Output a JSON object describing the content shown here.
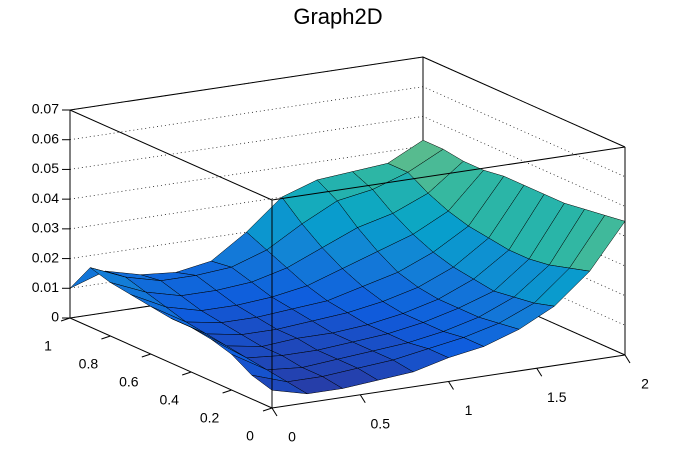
{
  "chart_data": {
    "type": "surface",
    "title": "Graph2D",
    "x": [
      0,
      0.2,
      0.4,
      0.6,
      0.8,
      1.0,
      1.2,
      1.4,
      1.6,
      1.8,
      2.0
    ],
    "y": [
      0,
      0.1,
      0.2,
      0.3,
      0.4,
      0.5,
      0.6,
      0.7,
      0.8,
      0.9,
      1.0
    ],
    "z": [
      [
        0.006,
        0.003,
        0.003,
        0.004,
        0.005,
        0.008,
        0.01,
        0.014,
        0.02,
        0.03,
        0.045
      ],
      [
        0.008,
        0.004,
        0.004,
        0.005,
        0.006,
        0.008,
        0.01,
        0.013,
        0.018,
        0.028,
        0.044
      ],
      [
        0.012,
        0.005,
        0.004,
        0.005,
        0.006,
        0.007,
        0.009,
        0.012,
        0.017,
        0.026,
        0.043
      ],
      [
        0.014,
        0.006,
        0.005,
        0.005,
        0.006,
        0.007,
        0.009,
        0.012,
        0.016,
        0.025,
        0.042
      ],
      [
        0.015,
        0.007,
        0.005,
        0.006,
        0.006,
        0.007,
        0.009,
        0.012,
        0.017,
        0.025,
        0.042
      ],
      [
        0.015,
        0.008,
        0.006,
        0.006,
        0.007,
        0.008,
        0.01,
        0.013,
        0.018,
        0.026,
        0.042
      ],
      [
        0.016,
        0.009,
        0.007,
        0.007,
        0.008,
        0.009,
        0.012,
        0.015,
        0.02,
        0.027,
        0.042
      ],
      [
        0.017,
        0.011,
        0.008,
        0.008,
        0.009,
        0.011,
        0.015,
        0.019,
        0.023,
        0.029,
        0.041
      ],
      [
        0.018,
        0.013,
        0.01,
        0.01,
        0.011,
        0.014,
        0.019,
        0.024,
        0.027,
        0.032,
        0.041
      ],
      [
        0.02,
        0.015,
        0.012,
        0.012,
        0.013,
        0.017,
        0.024,
        0.03,
        0.032,
        0.036,
        0.042
      ],
      [
        0.01,
        0.014,
        0.011,
        0.01,
        0.012,
        0.02,
        0.03,
        0.034,
        0.035,
        0.036,
        0.042
      ]
    ],
    "xlim": [
      0,
      2
    ],
    "ylim": [
      0,
      1
    ],
    "zlim": [
      0,
      0.07
    ],
    "xticks": [
      0,
      0.5,
      1,
      1.5,
      2
    ],
    "yticks": [
      0,
      0.2,
      0.4,
      0.6,
      0.8,
      1
    ],
    "zticks": [
      0,
      0.01,
      0.02,
      0.03,
      0.04,
      0.05,
      0.06,
      0.07
    ],
    "grid": true,
    "colors": [
      "#352a87",
      "#0f5cdd",
      "#1481d6",
      "#06a4ca",
      "#2eb7a4",
      "#87bf77",
      "#d1bb59",
      "#fec832",
      "#f9fb0e"
    ]
  }
}
